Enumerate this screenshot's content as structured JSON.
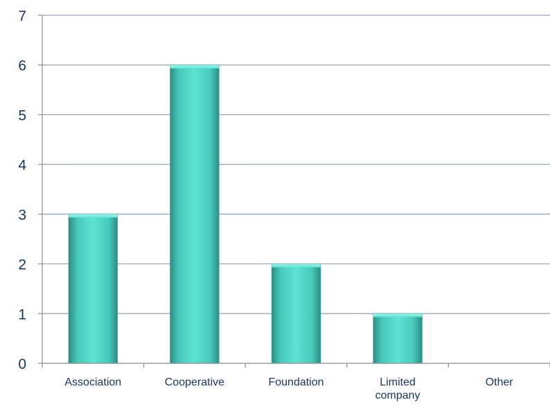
{
  "chart_data": {
    "type": "bar",
    "categories": [
      "Association",
      "Cooperative",
      "Foundation",
      "Limited company",
      "Other"
    ],
    "values": [
      3,
      6,
      2,
      1,
      0
    ],
    "title": "",
    "xlabel": "",
    "ylabel": "",
    "ylim": [
      0,
      7
    ],
    "yticks": [
      0,
      1,
      2,
      3,
      4,
      5,
      6,
      7
    ],
    "grid": true,
    "legend": "none",
    "colors": {
      "bar_light": "#5fe3d3",
      "bar_mid": "#3fbfb2",
      "bar_dark": "#2a8f86",
      "gridline": "#8ea3bd",
      "axis": "#8c8c8c",
      "label_text": "#17375e"
    }
  }
}
